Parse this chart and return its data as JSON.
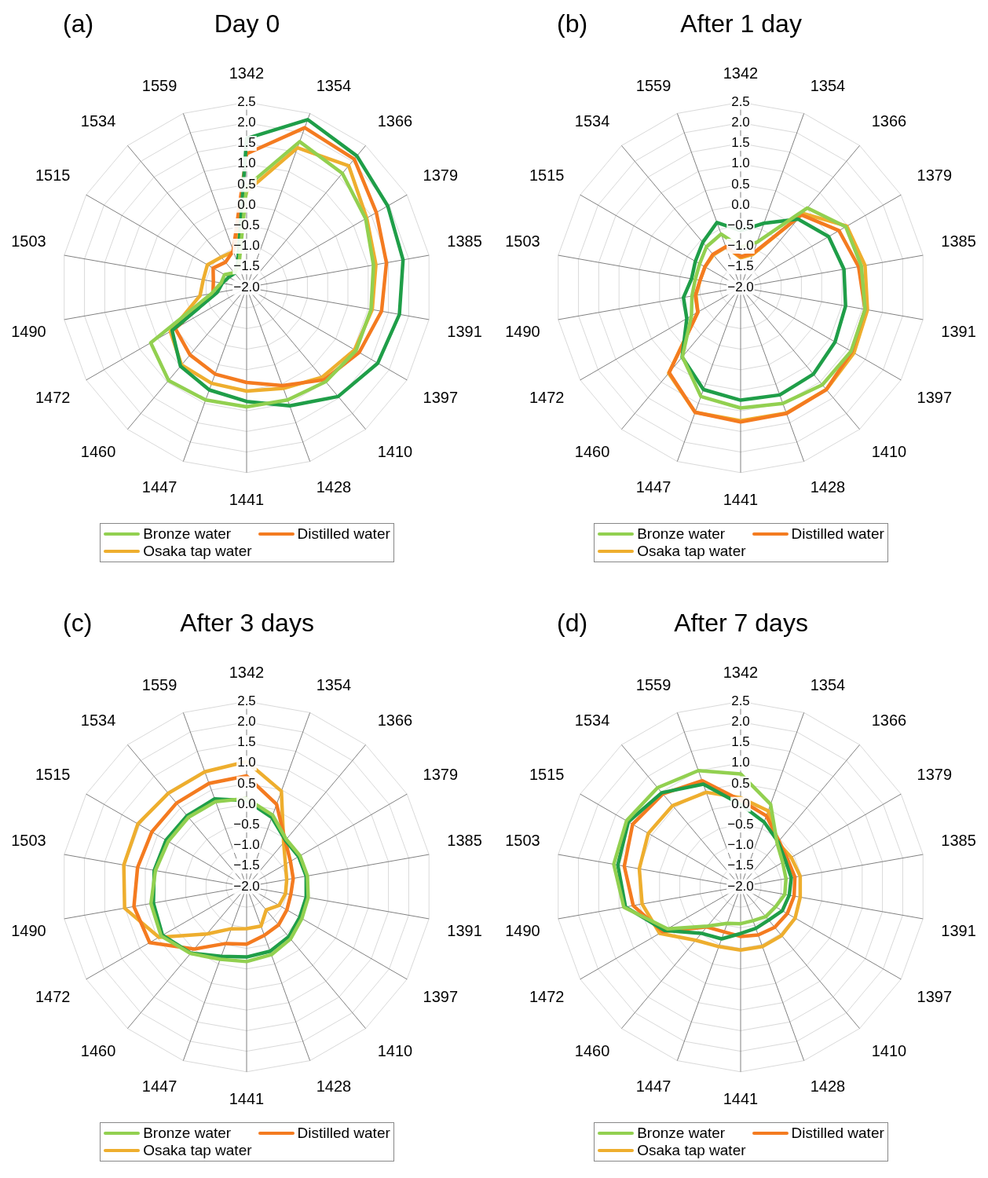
{
  "chart_data": [
    {
      "type": "radar",
      "title": "Day 0",
      "annotations": [
        "(a)"
      ],
      "categories": [
        "1342",
        "1354",
        "1366",
        "1379",
        "1385",
        "1391",
        "1397",
        "1410",
        "1428",
        "1441",
        "1447",
        "1460",
        "1472",
        "1490",
        "1503",
        "1515",
        "1534",
        "1559"
      ],
      "ylim": [
        -2,
        2.5
      ],
      "yticks": [
        {
          "value": -2,
          "label": "−2.0"
        },
        {
          "value": -1.5,
          "label": "−1.5"
        },
        {
          "value": -1,
          "label": "−1.0"
        },
        {
          "value": -0.5,
          "label": "−0.5"
        },
        {
          "value": 0,
          "label": "0.0"
        },
        {
          "value": 0.5,
          "label": "0.5"
        },
        {
          "value": 1,
          "label": "1.0"
        },
        {
          "value": 1.5,
          "label": "1.5"
        },
        {
          "value": 2,
          "label": "2.0"
        },
        {
          "value": 2.5,
          "label": "2.5"
        }
      ],
      "grid": true,
      "legend": "bottom",
      "marker": "none",
      "line_style": "solid",
      "series": [
        {
          "name": "Bronze water",
          "color": "#92d050",
          "values": [
            0.45,
            1.77,
            1.62,
            1.34,
            1.13,
            1.07,
            1.07,
            0.99,
            0.91,
            0.9,
            0.91,
            0.95,
            0.69,
            -1.13,
            -1.37,
            -1.38,
            -1.53,
            -1.45
          ]
        },
        {
          "color": "#1f9e48",
          "values": [
            1.62,
            2.34,
            2.17,
            1.96,
            1.86,
            1.77,
            1.68,
            1.46,
            1.06,
            0.77,
            0.65,
            0.5,
            0.09,
            -1.27,
            -1.4,
            -1.5,
            -1.55,
            -1.37
          ]
        },
        {
          "name": "Distilled water",
          "color": "#f47b20",
          "values": [
            1.25,
            2.13,
            2.07,
            1.64,
            1.45,
            1.33,
            1.16,
            0.93,
            0.54,
            0.31,
            0.24,
            0.14,
            0.0,
            -1.17,
            -1.18,
            -1.06,
            -1.2,
            -1.05
          ]
        },
        {
          "name": "Osaka tap water",
          "color": "#eeae2e",
          "values": [
            0.33,
            1.61,
            1.86,
            1.37,
            1.19,
            1.1,
            1.03,
            0.85,
            0.61,
            0.52,
            0.48,
            0.46,
            0.14,
            -0.85,
            -0.93,
            -0.9,
            -1.04,
            -1.07
          ]
        }
      ]
    },
    {
      "type": "radar",
      "title": "After 1 day",
      "annotations": [
        "(b)"
      ],
      "categories": [
        "1342",
        "1354",
        "1366",
        "1379",
        "1385",
        "1391",
        "1397",
        "1410",
        "1428",
        "1441",
        "1447",
        "1460",
        "1472",
        "1490",
        "1503",
        "1515",
        "1534",
        "1559"
      ],
      "ylim": [
        -2,
        2.5
      ],
      "yticks": [
        {
          "value": -2,
          "label": "−2.0"
        },
        {
          "value": -1.5,
          "label": "−1.5"
        },
        {
          "value": -1,
          "label": "−1.0"
        },
        {
          "value": -0.5,
          "label": "−0.5"
        },
        {
          "value": 0,
          "label": "0.0"
        },
        {
          "value": 0.5,
          "label": "0.5"
        },
        {
          "value": 1,
          "label": "1.0"
        },
        {
          "value": 1.5,
          "label": "1.5"
        },
        {
          "value": 2,
          "label": "2.0"
        },
        {
          "value": 2.5,
          "label": "2.5"
        }
      ],
      "grid": true,
      "legend": "bottom",
      "marker": "none",
      "line_style": "solid",
      "series": [
        {
          "name": "Bronze water",
          "color": "#92d050",
          "values": [
            -1.02,
            -0.83,
            0.52,
            0.95,
            0.98,
            1.07,
            1.1,
            1.09,
            1.0,
            0.93,
            0.82,
            0.2,
            -0.62,
            -0.8,
            -0.88,
            -0.85,
            -0.71,
            -0.62
          ]
        },
        {
          "color": "#1f9e48",
          "values": [
            -0.62,
            -0.34,
            0.17,
            0.47,
            0.55,
            0.59,
            0.65,
            0.75,
            0.78,
            0.74,
            0.64,
            0.21,
            -0.49,
            -0.59,
            -0.79,
            -0.73,
            -0.57,
            -0.32
          ]
        },
        {
          "name": "Distilled water",
          "color": "#f47b20",
          "values": [
            -1.25,
            -1.12,
            0.3,
            0.76,
            0.91,
            1.07,
            1.12,
            1.24,
            1.26,
            1.27,
            1.23,
            0.7,
            -0.8,
            -0.88,
            -1.0,
            -1.0,
            -0.95,
            -0.95
          ]
        },
        {
          "name": "Osaka tap water",
          "color": "#eeae2e",
          "values": [
            -1.28,
            -1.15,
            0.35,
            0.98,
            1.07,
            1.13,
            1.18,
            1.24,
            1.25,
            1.24,
            1.23,
            0.72,
            -0.8,
            -0.9,
            -1.0,
            -1.0,
            -0.97,
            -0.95
          ]
        }
      ]
    },
    {
      "type": "radar",
      "title": "After 3 days",
      "annotations": [
        "(c)"
      ],
      "categories": [
        "1342",
        "1354",
        "1366",
        "1379",
        "1385",
        "1391",
        "1397",
        "1410",
        "1428",
        "1441",
        "1447",
        "1460",
        "1472",
        "1490",
        "1503",
        "1515",
        "1534",
        "1559"
      ],
      "ylim": [
        -2,
        2.5
      ],
      "yticks": [
        {
          "value": -2,
          "label": "−2.0"
        },
        {
          "value": -1.5,
          "label": "−1.5"
        },
        {
          "value": -1,
          "label": "−1.0"
        },
        {
          "value": -0.5,
          "label": "−0.5"
        },
        {
          "value": 0,
          "label": "0.0"
        },
        {
          "value": 0.5,
          "label": "0.5"
        },
        {
          "value": 1,
          "label": "1.0"
        },
        {
          "value": 1.5,
          "label": "1.5"
        },
        {
          "value": 2,
          "label": "2.0"
        },
        {
          "value": 2.5,
          "label": "2.5"
        }
      ],
      "grid": true,
      "legend": "bottom",
      "marker": "none",
      "line_style": "solid",
      "series": [
        {
          "name": "Bronze water",
          "color": "#92d050",
          "values": [
            0.14,
            -0.15,
            -0.5,
            -0.5,
            -0.5,
            -0.48,
            -0.45,
            -0.34,
            -0.24,
            -0.18,
            -0.12,
            0.12,
            0.4,
            0.36,
            0.25,
            0.2,
            0.2,
            0.2
          ]
        },
        {
          "color": "#1f9e48",
          "values": [
            0.09,
            -0.21,
            -0.53,
            -0.54,
            -0.53,
            -0.53,
            -0.51,
            -0.41,
            -0.33,
            -0.29,
            -0.2,
            0.11,
            0.36,
            0.3,
            0.28,
            0.26,
            0.25,
            0.27
          ]
        },
        {
          "name": "Distilled water",
          "color": "#f47b20",
          "values": [
            0.69,
            0.13,
            -0.54,
            -0.77,
            -0.85,
            -0.91,
            -0.87,
            -0.79,
            -0.74,
            -0.6,
            -0.53,
            -0.02,
            0.72,
            0.78,
            0.69,
            0.66,
            0.65,
            0.67
          ]
        },
        {
          "name": "Osaka tap water",
          "color": "#eeae2e",
          "values": [
            1.04,
            0.47,
            -0.6,
            -0.91,
            -1.01,
            -1.04,
            -1.09,
            -1.26,
            -0.98,
            -0.98,
            -0.91,
            -0.5,
            0.46,
            1.01,
            1.03,
            1.05,
            0.96,
            0.97
          ]
        }
      ]
    },
    {
      "type": "radar",
      "title": "After 7 days",
      "annotations": [
        "(d)"
      ],
      "categories": [
        "1342",
        "1354",
        "1366",
        "1379",
        "1385",
        "1391",
        "1397",
        "1410",
        "1428",
        "1441",
        "1447",
        "1460",
        "1472",
        "1490",
        "1503",
        "1515",
        "1534",
        "1559"
      ],
      "ylim": [
        -2,
        2.5
      ],
      "yticks": [
        {
          "value": -2,
          "label": "−2.0"
        },
        {
          "value": -1.5,
          "label": "−1.5"
        },
        {
          "value": -1,
          "label": "−1.0"
        },
        {
          "value": -0.5,
          "label": "−0.5"
        },
        {
          "value": 0,
          "label": "0.0"
        },
        {
          "value": 0.5,
          "label": "0.5"
        },
        {
          "value": 1,
          "label": "1.0"
        },
        {
          "value": 1.5,
          "label": "1.5"
        },
        {
          "value": 2,
          "label": "2.0"
        },
        {
          "value": 2.5,
          "label": "2.5"
        }
      ],
      "grid": true,
      "legend": "bottom",
      "marker": "none",
      "line_style": "solid",
      "series": [
        {
          "name": "Bronze water",
          "color": "#92d050",
          "values": [
            0.74,
            0.13,
            -0.62,
            -0.82,
            -0.88,
            -0.91,
            -1.02,
            -1.05,
            -1.12,
            -1.1,
            -1.05,
            -0.75,
            0.05,
            0.88,
            1.13,
            1.2,
            1.14,
            1.0
          ]
        },
        {
          "color": "#1f9e48",
          "values": [
            0.0,
            -0.33,
            -0.58,
            -0.74,
            -0.75,
            -0.8,
            -0.83,
            -0.94,
            -0.92,
            -0.86,
            -0.65,
            -0.52,
            0.13,
            0.84,
            1.03,
            1.15,
            0.98,
            0.65
          ]
        },
        {
          "name": "Distilled water",
          "color": "#f47b20",
          "values": [
            0.1,
            -0.17,
            -0.55,
            -0.68,
            -0.66,
            -0.68,
            -0.69,
            -0.71,
            -0.75,
            -0.79,
            -0.83,
            -0.72,
            0.19,
            0.65,
            0.87,
            1.03,
            0.94,
            0.74
          ]
        },
        {
          "name": "Osaka tap water",
          "color": "#eeae2e",
          "values": [
            0.16,
            -0.04,
            -0.6,
            -0.58,
            -0.53,
            -0.53,
            -0.47,
            -0.45,
            -0.45,
            -0.46,
            -0.45,
            -0.3,
            0.27,
            0.43,
            0.5,
            0.59,
            0.57,
            0.44
          ]
        }
      ]
    }
  ]
}
